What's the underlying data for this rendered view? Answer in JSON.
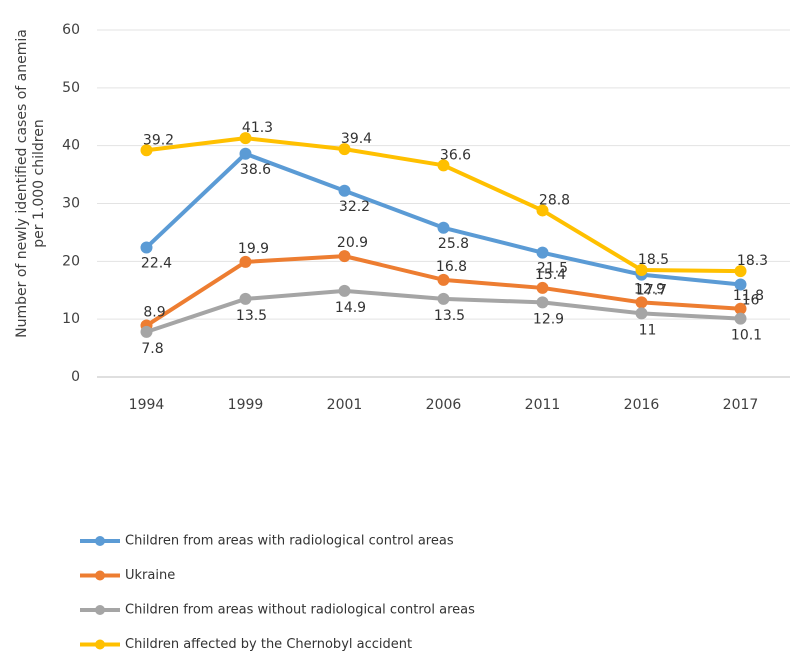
{
  "chart_data": {
    "type": "line",
    "ylabel": [
      "Number of newly identified cases of anemia",
      "per 1.000 children"
    ],
    "categories": [
      "1994",
      "1999",
      "2001",
      "2006",
      "2011",
      "2016",
      "2017"
    ],
    "series": [
      {
        "name": "Children from areas with radiological control areas",
        "color": "#5b9bd5",
        "values": [
          22.4,
          38.6,
          32.2,
          25.8,
          21.5,
          17.7,
          16
        ]
      },
      {
        "name": "Ukraine",
        "color": "#ed7d31",
        "values": [
          8.9,
          19.9,
          20.9,
          16.8,
          15.4,
          12.9,
          11.8
        ]
      },
      {
        "name": "Children from areas without radiological control areas",
        "color": "#a5a5a5",
        "values": [
          7.8,
          13.5,
          14.9,
          13.5,
          12.9,
          11,
          10.1
        ]
      },
      {
        "name": "Children affected by the Chernobyl accident",
        "color": "#ffc000",
        "values": [
          39.2,
          41.3,
          39.4,
          36.6,
          28.8,
          18.5,
          18.3
        ]
      }
    ],
    "ylim": [
      0,
      60
    ],
    "yticks": [
      0,
      10,
      20,
      30,
      40,
      50,
      60
    ],
    "grid": true,
    "legend": "bottom"
  }
}
